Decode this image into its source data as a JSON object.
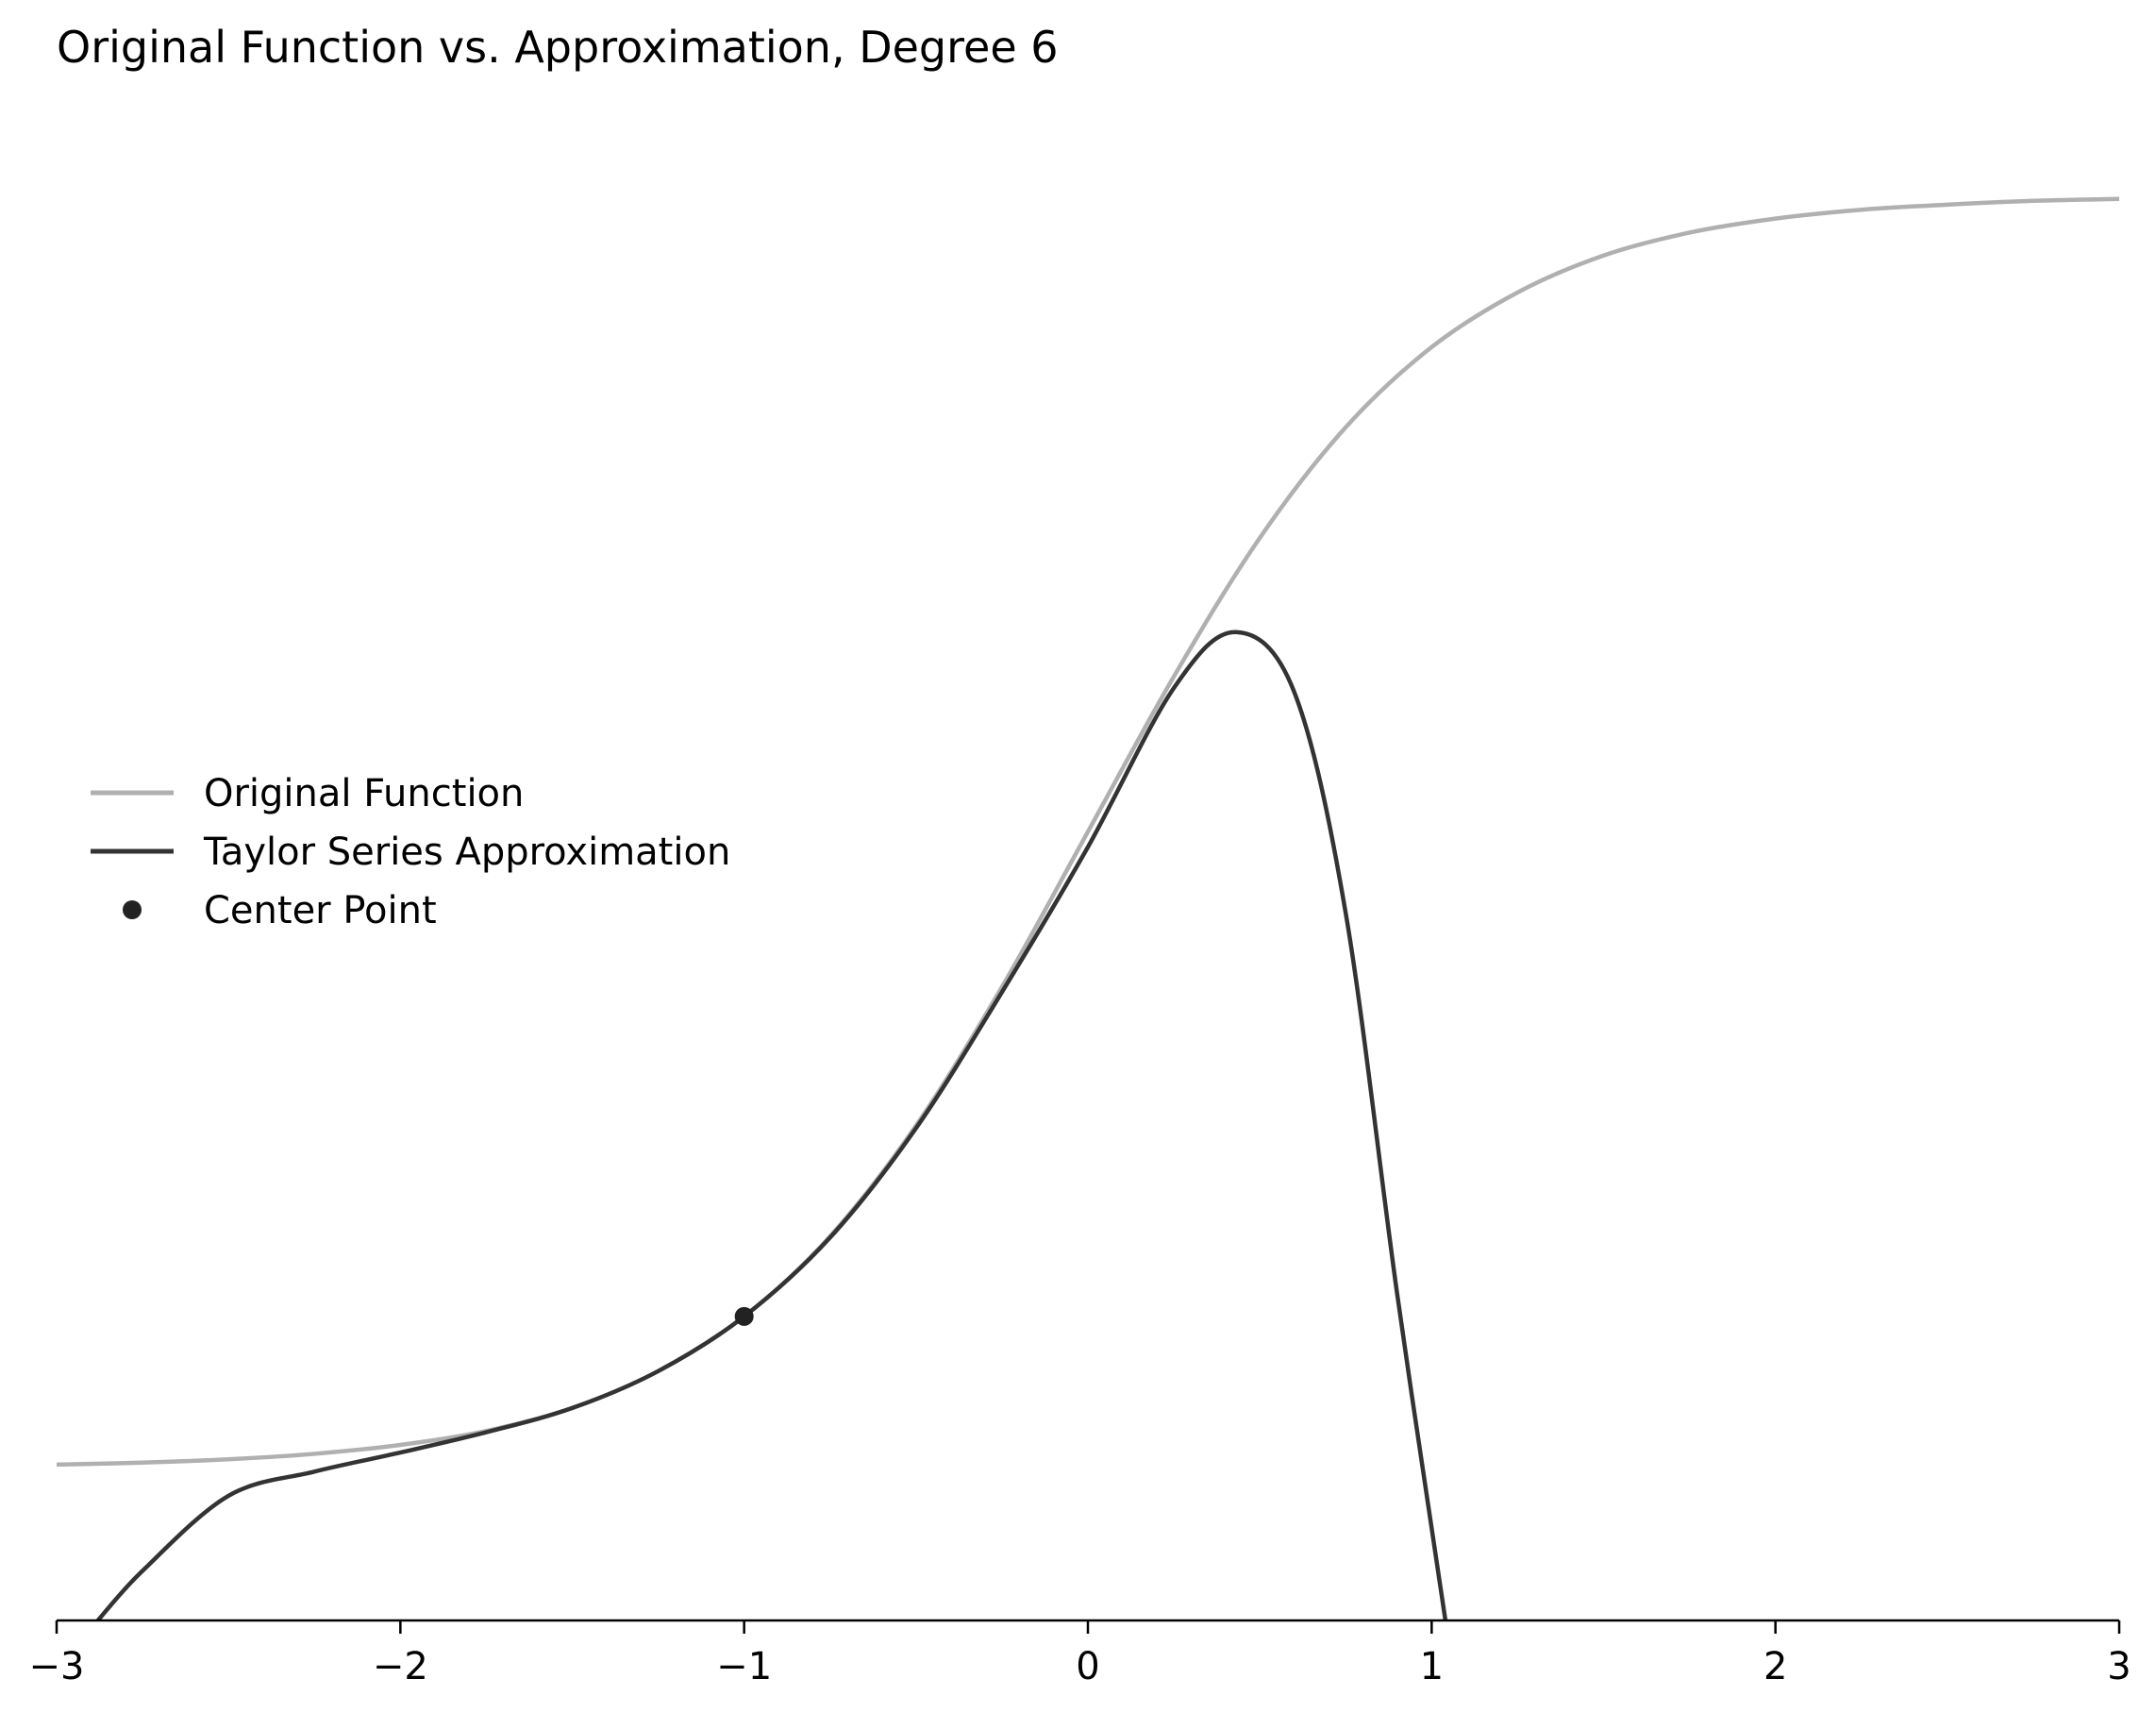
{
  "chart_data": {
    "type": "line",
    "title": "Original Function vs. Approximation, Degree 6",
    "xlabel": "",
    "ylabel": "",
    "xlim": [
      -3,
      3
    ],
    "ylim": [
      -0.12,
      1.05
    ],
    "x_ticks": [
      -3,
      -2,
      -1,
      0,
      1,
      2,
      3
    ],
    "x_tick_labels": [
      "−3",
      "−2",
      "−1",
      "0",
      "1",
      "2",
      "3"
    ],
    "y_axis_visible": false,
    "grid": false,
    "legend_position": "center-left",
    "series": [
      {
        "name": "Original Function",
        "color": "#b0b0b0",
        "x": [
          -3.0,
          -2.75,
          -2.5,
          -2.25,
          -2.0,
          -1.75,
          -1.5,
          -1.25,
          -1.0,
          -0.75,
          -0.5,
          -0.25,
          0.0,
          0.25,
          0.5,
          0.75,
          1.0,
          1.25,
          1.5,
          1.75,
          2.0,
          2.25,
          2.5,
          2.75,
          3.0
        ],
        "y": [
          0.0025,
          0.0041,
          0.0067,
          0.011,
          0.018,
          0.029,
          0.047,
          0.076,
          0.119,
          0.182,
          0.269,
          0.378,
          0.5,
          0.622,
          0.731,
          0.818,
          0.881,
          0.924,
          0.953,
          0.971,
          0.982,
          0.989,
          0.993,
          0.996,
          0.9975
        ]
      },
      {
        "name": "Taylor Series Approximation",
        "color": "#333333",
        "x": [
          -2.88,
          -2.75,
          -2.5,
          -2.25,
          -2.0,
          -1.75,
          -1.5,
          -1.25,
          -1.0,
          -0.75,
          -0.5,
          -0.25,
          0.0,
          0.25,
          0.43,
          0.6,
          0.75,
          0.9,
          1.04
        ],
        "y": [
          -0.12,
          -0.081,
          -0.022,
          -0.003,
          0.012,
          0.028,
          0.047,
          0.076,
          0.119,
          0.181,
          0.267,
          0.374,
          0.488,
          0.613,
          0.657,
          0.61,
          0.436,
          0.136,
          -0.12
        ]
      },
      {
        "name": "Center Point",
        "color": "#222222",
        "marker": "circle",
        "x": [
          -1.0
        ],
        "y": [
          0.119
        ]
      }
    ]
  }
}
